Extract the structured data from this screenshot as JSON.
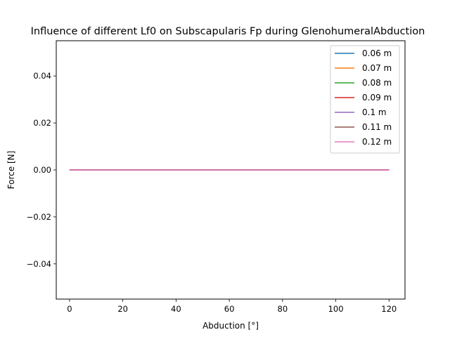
{
  "chart_data": {
    "type": "line",
    "title": "Influence of different Lf0 on Subscapularis Fp during GlenohumeralAbduction",
    "xlabel": "Abduction [°]",
    "ylabel": "Force [N]",
    "xlim": [
      -5,
      126
    ],
    "ylim": [
      -0.055,
      0.055
    ],
    "xticks": [
      0,
      20,
      40,
      60,
      80,
      100,
      120
    ],
    "xtick_labels": [
      "0",
      "20",
      "40",
      "60",
      "80",
      "100",
      "120"
    ],
    "yticks": [
      -0.04,
      -0.02,
      0.0,
      0.02,
      0.04
    ],
    "ytick_labels": [
      "−0.04",
      "−0.02",
      "0.00",
      "0.02",
      "0.04"
    ],
    "grid": false,
    "legend_position": "top-right",
    "x": [
      0,
      120
    ],
    "series": [
      {
        "name": "0.06 m",
        "color": "#1f77b4",
        "values": [
          0,
          0
        ]
      },
      {
        "name": "0.07 m",
        "color": "#ff7f0e",
        "values": [
          0,
          0
        ]
      },
      {
        "name": "0.08 m",
        "color": "#2ca02c",
        "values": [
          0,
          0
        ]
      },
      {
        "name": "0.09 m",
        "color": "#d62728",
        "values": [
          0,
          0
        ]
      },
      {
        "name": "0.1 m",
        "color": "#9467bd",
        "values": [
          0,
          0
        ]
      },
      {
        "name": "0.11 m",
        "color": "#8c564b",
        "values": [
          0,
          0
        ]
      },
      {
        "name": "0.12 m",
        "color": "#e377c2",
        "values": [
          0,
          0
        ]
      }
    ]
  }
}
